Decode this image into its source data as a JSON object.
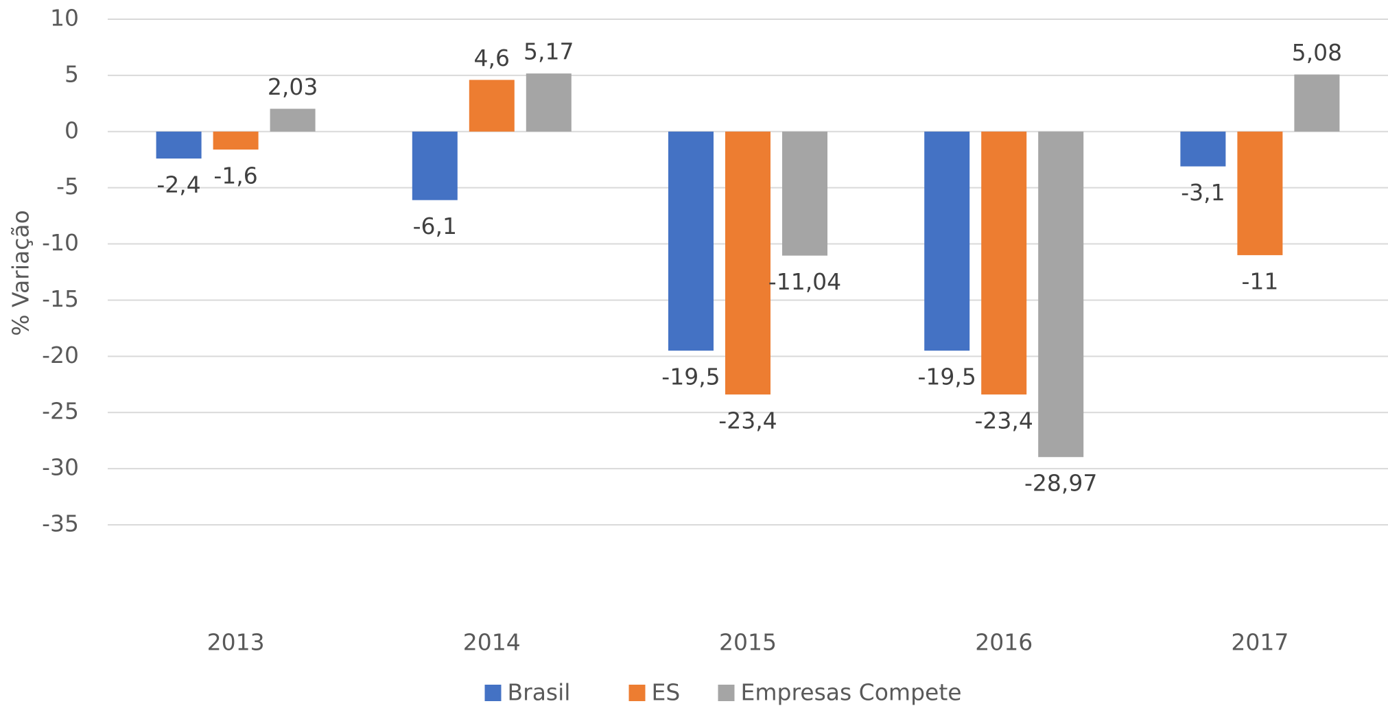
{
  "chart_data": {
    "type": "bar",
    "y_label": "% Variação",
    "categories": [
      "2013",
      "2014",
      "2015",
      "2016",
      "2017"
    ],
    "series": [
      {
        "name": "Brasil",
        "color": "#4472c4",
        "values": [
          -2.4,
          -6.1,
          -19.5,
          -19.5,
          -3.1
        ],
        "value_labels": [
          "-2,4",
          "-6,1",
          "-19,5",
          "-19,5",
          "-3,1"
        ]
      },
      {
        "name": "ES",
        "color": "#ed7d31",
        "values": [
          -1.6,
          4.6,
          -23.4,
          -23.4,
          -11
        ],
        "value_labels": [
          "-1,6",
          "4,6",
          "-23,4",
          "-23,4",
          "-11"
        ]
      },
      {
        "name": "Empresas Compete",
        "color": "#a5a5a5",
        "values": [
          2.03,
          5.17,
          -11.04,
          -28.97,
          5.08
        ],
        "value_labels": [
          "2,03",
          "5,17",
          "-11,04",
          "-28,97",
          "5,08"
        ]
      }
    ],
    "ylim": [
      -35,
      10
    ],
    "yticks": [
      10,
      5,
      0,
      -5,
      -10,
      -15,
      -20,
      -25,
      -30,
      -35
    ],
    "grid": true,
    "legend": "bottom"
  }
}
